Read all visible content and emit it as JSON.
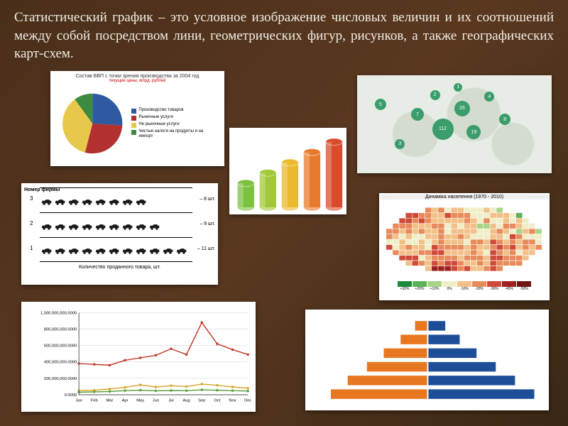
{
  "title_text": "Статистический график – это условное изображение числовых величин и их соотношений между собой посредством лини, геометрических фигур, рисунков, а также географических карт-схем.",
  "title_color": "#f0ede4",
  "title_fontsize": 19,
  "pie": {
    "type": "pie",
    "title": "Состав ВВП с точки зрения производства за 2004 год",
    "subtitle": "текущие цены, млрд. рублей",
    "slices": [
      {
        "label": "Производство товаров",
        "value": 26,
        "color": "#2d5aa0"
      },
      {
        "label": "Рыночные услуги",
        "value": 28,
        "color": "#b23030"
      },
      {
        "label": "Не рыночные услуги",
        "value": 36,
        "color": "#e8c84a"
      },
      {
        "label": "Чистые налоги на продукты и на импорт",
        "value": 10,
        "color": "#3e8a3e"
      }
    ],
    "background": "#ffffff"
  },
  "map": {
    "type": "bubble-map",
    "background": "#e8ece6",
    "bubble_color": "#3a9d6b",
    "bubbles": [
      {
        "x": 12,
        "y": 30,
        "v": 5,
        "r": 8
      },
      {
        "x": 22,
        "y": 70,
        "v": 3,
        "r": 7
      },
      {
        "x": 31,
        "y": 40,
        "v": 7,
        "r": 9
      },
      {
        "x": 40,
        "y": 20,
        "v": 2,
        "r": 7
      },
      {
        "x": 44,
        "y": 55,
        "v": 112,
        "r": 15
      },
      {
        "x": 54,
        "y": 34,
        "v": 26,
        "r": 11
      },
      {
        "x": 60,
        "y": 58,
        "v": 19,
        "r": 10
      },
      {
        "x": 68,
        "y": 22,
        "v": 4,
        "r": 7
      },
      {
        "x": 76,
        "y": 45,
        "v": 8,
        "r": 8
      },
      {
        "x": 52,
        "y": 12,
        "v": 1,
        "r": 6
      }
    ]
  },
  "cylinders": {
    "type": "bar-3d",
    "bars": [
      {
        "h": 35,
        "color": "#7bc23f"
      },
      {
        "h": 50,
        "color": "#a0c838"
      },
      {
        "h": 65,
        "color": "#eab92d"
      },
      {
        "h": 80,
        "color": "#e87a2d"
      },
      {
        "h": 95,
        "color": "#d84c2b"
      }
    ],
    "background": "#ffffff"
  },
  "pictogram": {
    "type": "pictogram",
    "ylabel": "Номер фирмы",
    "xlabel": "Количество проданного товара, шт.",
    "unit_suffix": " шт.",
    "rows": [
      {
        "num": "3",
        "count": 8
      },
      {
        "num": "2",
        "count": 9
      },
      {
        "num": "1",
        "count": 11
      }
    ],
    "icon_color": "#1a1a1a"
  },
  "choropleth": {
    "type": "choropleth",
    "title": "Динаміка населення (1970 - 2010)",
    "classes": [
      {
        "label": "+30%",
        "color": "#1a8a3a"
      },
      {
        "label": "+20%",
        "color": "#5ab35a"
      },
      {
        "label": "+10%",
        "color": "#a8d48a"
      },
      {
        "label": "0%",
        "color": "#f0eec8"
      },
      {
        "label": "-10%",
        "color": "#f2c088"
      },
      {
        "label": "-20%",
        "color": "#e88a5a"
      },
      {
        "label": "-30%",
        "color": "#d04a3a"
      },
      {
        "label": "-45%",
        "color": "#a02020"
      },
      {
        "label": "-50%",
        "color": "#701515"
      }
    ]
  },
  "line": {
    "type": "line",
    "ylim": [
      0,
      1000000000
    ],
    "yticks": [
      "0.0000",
      "200,000,000.0000",
      "400,000,000.0000",
      "600,000,000.0000",
      "800,000,000.0000",
      "1,000,000,000.0000"
    ],
    "x": [
      "Jan",
      "Feb",
      "Mar",
      "Apr",
      "May",
      "Jun",
      "Jul",
      "Aug",
      "Sep",
      "Oct",
      "Nov",
      "Dec"
    ],
    "series": [
      {
        "color": "#c0392b",
        "values": [
          380,
          370,
          360,
          420,
          450,
          480,
          560,
          490,
          880,
          620,
          550,
          490
        ]
      },
      {
        "color": "#d4a62a",
        "values": [
          50,
          55,
          70,
          90,
          120,
          95,
          110,
          100,
          130,
          115,
          95,
          80
        ]
      },
      {
        "color": "#5aa03a",
        "values": [
          30,
          35,
          40,
          50,
          55,
          48,
          52,
          50,
          60,
          55,
          50,
          45
        ]
      }
    ],
    "grid_color": "#cccccc",
    "tick_fontsize": 6
  },
  "pyramid": {
    "type": "bar-horizontal-paired",
    "left_color": "#e87722",
    "right_color": "#1f4e99",
    "rows": [
      {
        "l": 10,
        "r": 14
      },
      {
        "l": 22,
        "r": 26
      },
      {
        "l": 36,
        "r": 40
      },
      {
        "l": 50,
        "r": 56
      },
      {
        "l": 66,
        "r": 72
      },
      {
        "l": 80,
        "r": 88
      }
    ],
    "background": "#ffffff"
  }
}
